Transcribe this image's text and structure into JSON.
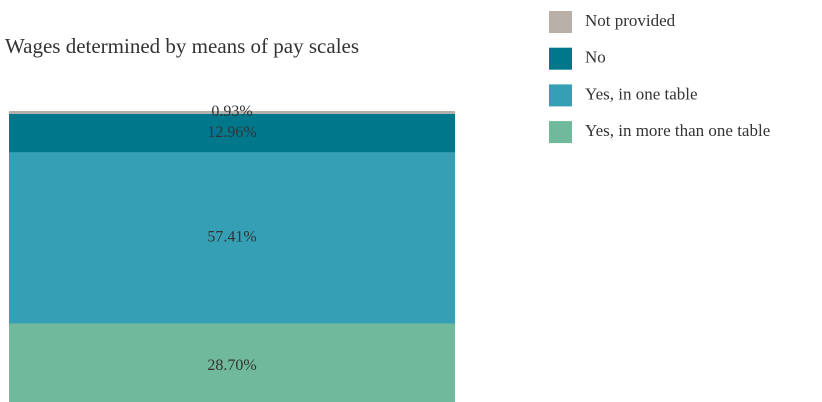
{
  "chart_data": {
    "type": "stacked_bar",
    "title": "Wages determined by means of pay scales",
    "categories": [
      null
    ],
    "ylim": [
      0,
      100
    ],
    "series": [
      {
        "name": "Not provided",
        "color": "#b9afa9",
        "values": [
          0.93
        ],
        "value_labels": [
          "0.93%"
        ]
      },
      {
        "name": "No",
        "color": "#00778a",
        "values": [
          12.96
        ],
        "value_labels": [
          "12.96%"
        ]
      },
      {
        "name": "Yes, in one table",
        "color": "#35a0b5",
        "values": [
          57.41
        ],
        "value_labels": [
          "57.41%"
        ]
      },
      {
        "name": "Yes, in more than one table",
        "color": "#70b99a",
        "values": [
          28.7
        ],
        "value_labels": [
          "28.70%"
        ]
      }
    ]
  }
}
